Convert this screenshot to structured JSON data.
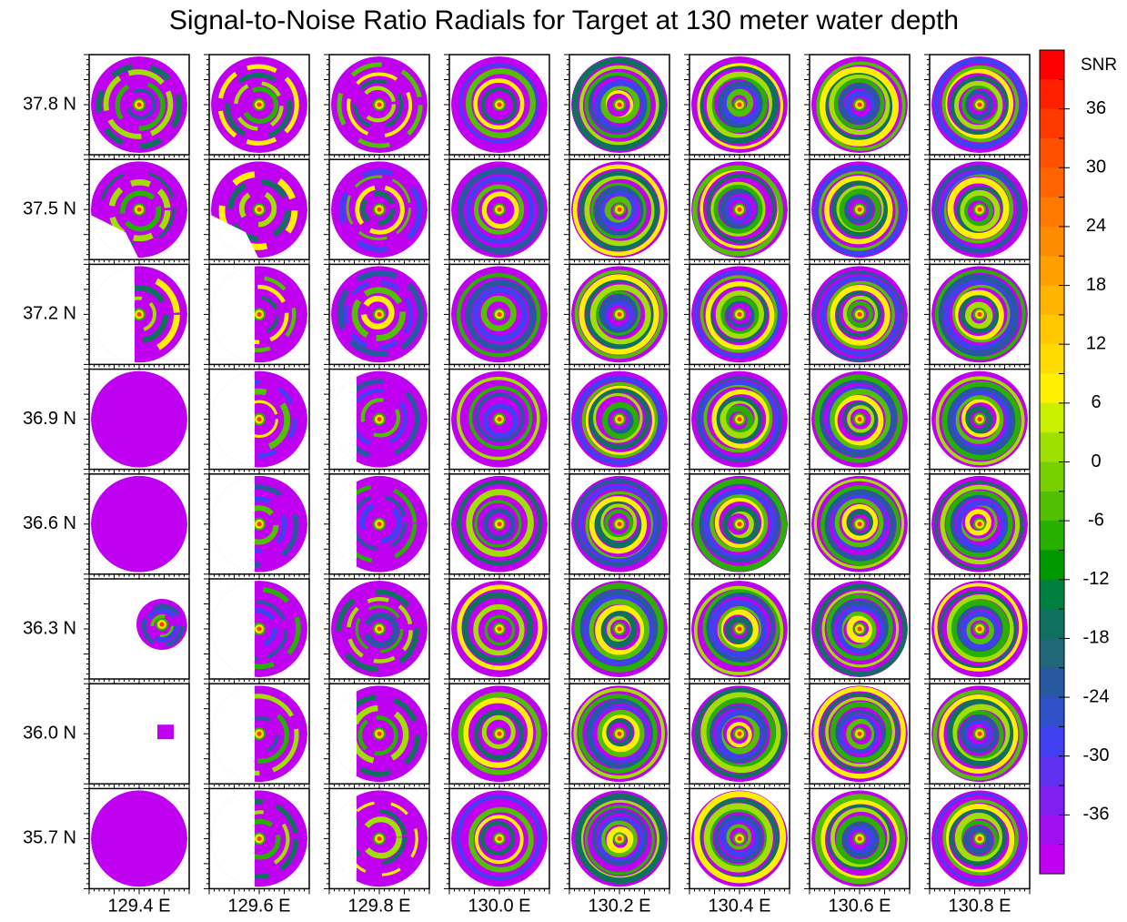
{
  "chart_data": {
    "type": "radial-grid",
    "title": "Signal-to-Noise Ratio Radials for Target at 130 meter water depth",
    "x_labels": [
      "129.4 E",
      "129.6 E",
      "129.8 E",
      "130.0 E",
      "130.2 E",
      "130.4 E",
      "130.6 E",
      "130.8 E"
    ],
    "y_labels": [
      "37.8 N",
      "37.5 N",
      "37.2 N",
      "36.9 N",
      "36.6 N",
      "36.3 N",
      "36.0 N",
      "35.7 N"
    ],
    "colorbar": {
      "label": "SNR",
      "lim": [
        -42,
        42
      ],
      "ticks": [
        36,
        30,
        24,
        18,
        12,
        6,
        0,
        -6,
        -12,
        -18,
        -24,
        -30,
        -36
      ],
      "colors": [
        "#ff0000",
        "#ff2000",
        "#ff3a00",
        "#ff5000",
        "#ff6400",
        "#ff7800",
        "#ff8c00",
        "#ffa000",
        "#ffb400",
        "#ffc800",
        "#ffdc00",
        "#fff000",
        "#c8f000",
        "#a0e000",
        "#78d000",
        "#50c000",
        "#28b000",
        "#009800",
        "#008040",
        "#107060",
        "#206878",
        "#2858a0",
        "#3050c8",
        "#4040f0",
        "#6030f0",
        "#8020f0",
        "#a010f0",
        "#c000f0"
      ]
    }
  }
}
